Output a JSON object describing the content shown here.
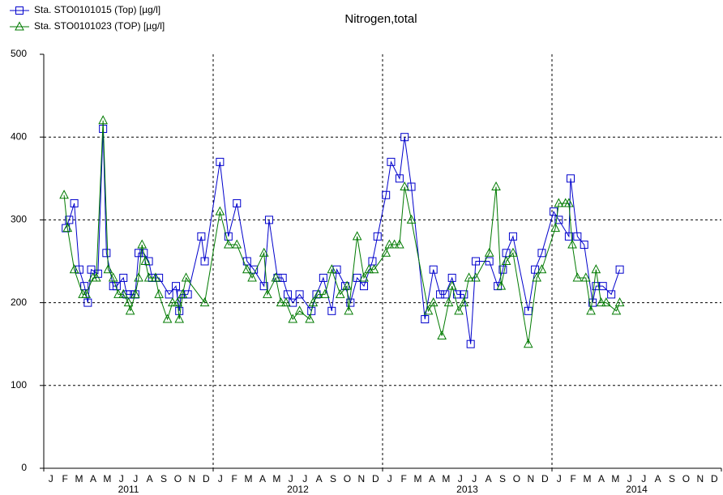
{
  "chart_data": {
    "type": "line",
    "title": "Nitrogen,total",
    "xlim": [
      2011,
      2015
    ],
    "xticks": [
      2011,
      2012,
      2013,
      2014,
      2015
    ],
    "month_labels": [
      "J",
      "F",
      "M",
      "A",
      "M",
      "J",
      "J",
      "A",
      "S",
      "O",
      "N",
      "D",
      "J",
      "F",
      "M",
      "A",
      "M",
      "J",
      "J",
      "A",
      "S",
      "O",
      "N",
      "D",
      "J",
      "F",
      "M",
      "A",
      "M",
      "J",
      "J",
      "A",
      "S",
      "O",
      "N",
      "D",
      "J",
      "F",
      "M",
      "A",
      "M",
      "J",
      "J",
      "A",
      "S",
      "O",
      "N",
      "D"
    ],
    "year_labels": [
      "2011",
      "2012",
      "2013",
      "2014"
    ],
    "ylim": [
      0,
      500
    ],
    "yticks": [
      0,
      100,
      200,
      300,
      400,
      500
    ],
    "grid": true,
    "series": [
      {
        "name": "Sta. STO0101015 (Top) [µg/l]",
        "color": "#0000cc",
        "marker": "square",
        "x": [
          2011.13,
          2011.15,
          2011.18,
          2011.21,
          2011.24,
          2011.26,
          2011.28,
          2011.32,
          2011.35,
          2011.37,
          2011.41,
          2011.43,
          2011.47,
          2011.49,
          2011.51,
          2011.54,
          2011.56,
          2011.59,
          2011.62,
          2011.64,
          2011.68,
          2011.74,
          2011.78,
          2011.8,
          2011.81,
          2011.85,
          2011.93,
          2011.95,
          2012.04,
          2012.09,
          2012.14,
          2012.2,
          2012.24,
          2012.3,
          2012.33,
          2012.38,
          2012.41,
          2012.44,
          2012.47,
          2012.51,
          2012.58,
          2012.61,
          2012.65,
          2012.7,
          2012.73,
          2012.78,
          2012.81,
          2012.85,
          2012.89,
          2012.94,
          2012.97,
          2013.02,
          2013.05,
          2013.1,
          2013.13,
          2013.17,
          2013.25,
          2013.3,
          2013.34,
          2013.37,
          2013.41,
          2013.44,
          2013.48,
          2013.52,
          2013.55,
          2013.63,
          2013.68,
          2013.71,
          2013.73,
          2013.77,
          2013.86,
          2013.9,
          2013.94,
          2014.01,
          2014.04,
          2014.1,
          2014.11,
          2014.15,
          2014.19,
          2014.24,
          2014.26,
          2014.3,
          2014.35,
          2014.4
        ],
        "values": [
          290,
          300,
          320,
          240,
          220,
          200,
          240,
          235,
          410,
          260,
          220,
          220,
          230,
          210,
          210,
          210,
          260,
          260,
          250,
          230,
          230,
          210,
          220,
          190,
          210,
          210,
          280,
          250,
          370,
          280,
          320,
          250,
          240,
          220,
          300,
          230,
          230,
          210,
          200,
          210,
          190,
          210,
          230,
          190,
          240,
          220,
          200,
          230,
          220,
          250,
          280,
          330,
          370,
          350,
          400,
          340,
          180,
          240,
          210,
          210,
          230,
          210,
          210,
          150,
          250,
          250,
          220,
          240,
          260,
          280,
          190,
          240,
          260,
          310,
          300,
          280,
          350,
          280,
          270,
          200,
          220,
          220,
          210,
          240
        ]
      },
      {
        "name": "Sta. STO0101023 (TOP) [µg/l]",
        "color": "#007a00",
        "marker": "triangle",
        "x": [
          2011.12,
          2011.14,
          2011.18,
          2011.23,
          2011.25,
          2011.29,
          2011.31,
          2011.35,
          2011.38,
          2011.41,
          2011.44,
          2011.47,
          2011.5,
          2011.51,
          2011.54,
          2011.56,
          2011.58,
          2011.6,
          2011.62,
          2011.66,
          2011.68,
          2011.73,
          2011.76,
          2011.79,
          2011.8,
          2011.82,
          2011.84,
          2011.95,
          2012.04,
          2012.09,
          2012.14,
          2012.2,
          2012.23,
          2012.3,
          2012.32,
          2012.37,
          2012.4,
          2012.43,
          2012.47,
          2012.51,
          2012.57,
          2012.59,
          2012.62,
          2012.66,
          2012.7,
          2012.75,
          2012.79,
          2012.8,
          2012.85,
          2012.89,
          2012.92,
          2012.95,
          2013.02,
          2013.04,
          2013.07,
          2013.1,
          2013.13,
          2013.17,
          2013.27,
          2013.3,
          2013.35,
          2013.39,
          2013.41,
          2013.45,
          2013.48,
          2013.51,
          2013.55,
          2013.63,
          2013.67,
          2013.7,
          2013.73,
          2013.77,
          2013.86,
          2013.91,
          2013.94,
          2014.02,
          2014.04,
          2014.08,
          2014.1,
          2014.12,
          2014.15,
          2014.2,
          2014.23,
          2014.26,
          2014.29,
          2014.32,
          2014.38,
          2014.4
        ],
        "values": [
          330,
          290,
          240,
          210,
          210,
          230,
          230,
          420,
          240,
          230,
          210,
          210,
          200,
          190,
          210,
          230,
          270,
          250,
          230,
          230,
          210,
          180,
          200,
          200,
          180,
          210,
          230,
          200,
          310,
          270,
          270,
          240,
          230,
          260,
          210,
          230,
          200,
          200,
          180,
          190,
          180,
          200,
          210,
          210,
          240,
          210,
          220,
          190,
          280,
          230,
          240,
          240,
          260,
          270,
          270,
          270,
          340,
          300,
          190,
          200,
          160,
          200,
          220,
          190,
          200,
          230,
          230,
          260,
          340,
          220,
          250,
          260,
          150,
          230,
          240,
          290,
          320,
          320,
          320,
          270,
          230,
          230,
          190,
          240,
          200,
          200,
          190,
          200
        ]
      }
    ]
  }
}
